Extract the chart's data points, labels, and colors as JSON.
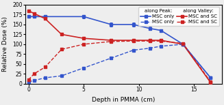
{
  "xlabel": "Depth in PMMA (cm)",
  "ylabel": "Relative Dose (%)",
  "xlim": [
    -0.3,
    17.5
  ],
  "ylim": [
    0,
    200
  ],
  "yticks": [
    0,
    25,
    50,
    75,
    100,
    125,
    150,
    175,
    200
  ],
  "xticks": [
    0,
    5,
    10,
    15
  ],
  "peak_msc_only_x": [
    0.0,
    0.5,
    1.5,
    5.0,
    7.5,
    9.5,
    11.0,
    12.0,
    14.0,
    16.5
  ],
  "peak_msc_only_y": [
    170,
    170,
    170,
    170,
    150,
    150,
    140,
    135,
    100,
    15
  ],
  "peak_msc_sc_x": [
    0.0,
    0.5,
    1.5,
    3.0,
    5.0,
    7.5,
    9.5,
    11.0,
    12.0,
    14.0,
    16.5
  ],
  "peak_msc_sc_y": [
    185,
    178,
    165,
    125,
    115,
    110,
    110,
    110,
    110,
    100,
    3
  ],
  "valley_msc_only_x": [
    0.0,
    0.5,
    1.5,
    3.0,
    5.0,
    7.5,
    9.5,
    11.0,
    12.0,
    14.0,
    16.5
  ],
  "valley_msc_only_y": [
    5,
    8,
    15,
    20,
    40,
    65,
    85,
    90,
    95,
    100,
    15
  ],
  "valley_msc_sc_x": [
    0.0,
    0.5,
    1.5,
    3.0,
    5.0,
    7.5,
    9.5,
    11.0,
    12.0,
    14.0,
    16.5
  ],
  "valley_msc_sc_y": [
    10,
    25,
    42,
    87,
    100,
    107,
    108,
    108,
    108,
    102,
    5
  ],
  "peak_msc_only_yerr": [
    3,
    3,
    3,
    4,
    5,
    5,
    4,
    3,
    3,
    3
  ],
  "peak_msc_sc_yerr": [
    3,
    3,
    3,
    3,
    3,
    4,
    4,
    4,
    3,
    3,
    3
  ],
  "valley_msc_only_yerr": [
    2,
    2,
    2,
    2,
    3,
    3,
    3,
    3,
    3,
    3,
    3
  ],
  "valley_msc_sc_yerr": [
    2,
    2,
    2,
    2,
    3,
    3,
    3,
    3,
    3,
    3,
    2
  ],
  "color_blue": "#3355cc",
  "color_red": "#cc2222",
  "background_color": "#eeeeee",
  "legend_fontsize": 5.0,
  "axis_fontsize": 6.5,
  "tick_fontsize": 5.5
}
